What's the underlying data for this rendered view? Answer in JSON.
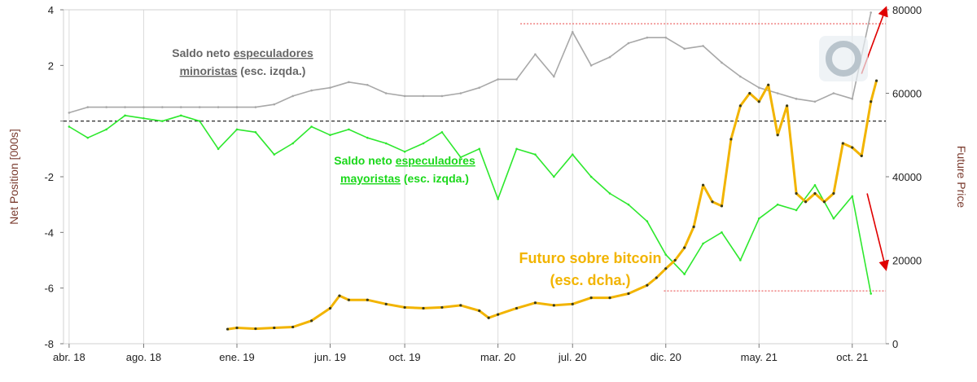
{
  "chart_data": {
    "type": "line",
    "title": "",
    "xlabel": "",
    "ylabel": "Net Position [000s]",
    "y2label": "Future Price",
    "x_ticks": [
      "abr. 18",
      "ago. 18",
      "ene. 19",
      "jun. 19",
      "oct. 19",
      "mar. 20",
      "jul. 20",
      "dic. 20",
      "may. 21",
      "oct. 21"
    ],
    "x_tick_months": [
      0,
      4,
      9,
      14,
      18,
      23,
      27,
      32,
      37,
      42
    ],
    "xlim": [
      -0.3,
      43.8
    ],
    "ylim": [
      -8,
      4
    ],
    "y_ticks": [
      4,
      2,
      0,
      -2,
      -4,
      -6,
      -8
    ],
    "y_tick_labels": [
      "4",
      "2",
      "",
      "-2",
      "-4",
      "-6",
      "-8"
    ],
    "y2lim": [
      0,
      80000
    ],
    "y2_ticks": [
      0,
      20000,
      40000,
      60000,
      80000
    ],
    "y2_tick_labels": [
      "0",
      "20000",
      "40000",
      "60000",
      "80000"
    ],
    "grid": "vertical",
    "zero_line": 0,
    "series": [
      {
        "name": "Saldo neto especuladores minoristas",
        "axis": "left",
        "color": "#a8a8a8",
        "x": [
          0,
          1,
          2,
          3,
          4,
          5,
          6,
          7,
          8,
          9,
          10,
          11,
          12,
          13,
          14,
          15,
          16,
          17,
          18,
          19,
          20,
          21,
          22,
          23,
          24,
          25,
          26,
          27,
          28,
          29,
          30,
          31,
          32,
          33,
          34,
          35,
          36,
          37,
          38,
          39,
          40,
          41,
          42,
          43
        ],
        "values": [
          0.3,
          0.5,
          0.5,
          0.5,
          0.5,
          0.5,
          0.5,
          0.5,
          0.5,
          0.5,
          0.5,
          0.6,
          0.9,
          1.1,
          1.2,
          1.4,
          1.3,
          1.0,
          0.9,
          0.9,
          0.9,
          1.0,
          1.2,
          1.5,
          1.5,
          2.4,
          1.6,
          3.2,
          2.0,
          2.3,
          2.8,
          3.0,
          3.0,
          2.6,
          2.7,
          2.1,
          1.6,
          1.2,
          1.0,
          0.8,
          0.7,
          1.0,
          0.8,
          3.9
        ]
      },
      {
        "name": "Saldo neto especuladores mayoristas",
        "axis": "left",
        "color": "#2ee82e",
        "x": [
          0,
          1,
          2,
          3,
          4,
          5,
          6,
          7,
          8,
          9,
          10,
          11,
          12,
          13,
          14,
          15,
          16,
          17,
          18,
          19,
          20,
          21,
          22,
          23,
          24,
          25,
          26,
          27,
          28,
          29,
          30,
          31,
          32,
          33,
          34,
          35,
          36,
          37,
          38,
          39,
          40,
          41,
          42,
          43
        ],
        "values": [
          -0.2,
          -0.6,
          -0.3,
          0.2,
          0.1,
          0.0,
          0.2,
          0.0,
          -1.0,
          -0.3,
          -0.4,
          -1.2,
          -0.8,
          -0.2,
          -0.5,
          -0.3,
          -0.6,
          -0.8,
          -1.1,
          -0.8,
          -0.4,
          -1.3,
          -1.0,
          -2.8,
          -1.0,
          -1.2,
          -2.0,
          -1.2,
          -2.0,
          -2.6,
          -3.0,
          -3.6,
          -4.8,
          -5.5,
          -4.4,
          -4.0,
          -5.0,
          -3.5,
          -3.0,
          -3.2,
          -2.3,
          -3.5,
          -2.7,
          -6.2
        ]
      },
      {
        "name": "Futuro sobre bitcoin",
        "axis": "right",
        "color": "#f2b400",
        "marker_color": "#3a3a1a",
        "x": [
          8.5,
          9,
          10,
          11,
          12,
          13,
          14,
          14.5,
          15,
          16,
          17,
          18,
          19,
          20,
          21,
          22,
          22.5,
          23,
          24,
          25,
          26,
          27,
          28,
          29,
          30,
          31,
          31.5,
          32,
          32.5,
          33,
          33.5,
          34,
          34.5,
          35,
          35.5,
          36,
          36.5,
          37,
          37.5,
          38,
          38.5,
          39,
          39.5,
          40,
          40.5,
          41,
          41.5,
          42,
          42.5,
          43,
          43.3
        ],
        "values": [
          3500,
          3800,
          3600,
          3800,
          4000,
          5500,
          8500,
          11500,
          10500,
          10500,
          9500,
          8700,
          8500,
          8700,
          9200,
          7900,
          6200,
          7000,
          8500,
          9800,
          9200,
          9500,
          11000,
          11000,
          12000,
          14000,
          15800,
          18000,
          20000,
          23000,
          28000,
          38000,
          34000,
          33000,
          49000,
          57000,
          60000,
          58000,
          62000,
          50000,
          57000,
          36000,
          34000,
          36000,
          34000,
          36000,
          48000,
          47000,
          45000,
          58000,
          63000
        ]
      }
    ],
    "annotations": [
      {
        "line1_plain": "Saldo neto ",
        "line1_underlined": "especuladores",
        "line2_underlined": "minoristas",
        "line2_plain": " (esc. izqda.)",
        "color": "#666666"
      },
      {
        "line1_plain": "Saldo neto ",
        "line1_underlined": "especuladores",
        "line2_underlined": "mayoristas",
        "line2_plain": " (esc. izqda.)",
        "color": "#1ad81a"
      },
      {
        "line1": "Futuro sobre bitcoin",
        "line2": "(esc. dcha.)",
        "color": "#f2b400"
      }
    ],
    "reference_lines": [
      {
        "axis": "left",
        "y": 3.5,
        "x_from": 24.2,
        "x_to": 43.8,
        "color": "#e84040"
      },
      {
        "axis": "left",
        "y": -6.1,
        "x_from": 31.9,
        "x_to": 43.8,
        "color": "#e84040"
      }
    ],
    "arrows": [
      {
        "axis": "left",
        "from": [
          42.5,
          1.7
        ],
        "to": [
          43.8,
          4.05
        ],
        "color": "#e00000"
      },
      {
        "axis": "left",
        "from": [
          42.8,
          -2.6
        ],
        "to": [
          43.8,
          -5.3
        ],
        "color": "#e00000"
      }
    ]
  }
}
